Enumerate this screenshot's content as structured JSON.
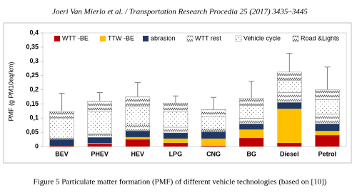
{
  "header": {
    "citation": "Joeri Van Mierlo et al. / Transportation Research Procedia 25 (2017) 3435–3445"
  },
  "chart_data": {
    "type": "stacked-bar",
    "y_label": "PMF (g PM10eq/km)",
    "categories": [
      "BEV",
      "PHEV",
      "HEV",
      "LPG",
      "CNG",
      "BG",
      "Diesel",
      "Petrol"
    ],
    "series": [
      {
        "name": "WTT -BE",
        "color": "#c00000",
        "pattern": "solid",
        "values": [
          0.005,
          0.01,
          0.025,
          0.013,
          0.003,
          0.03,
          0.013,
          0.04
        ]
      },
      {
        "name": "TTW -BE",
        "color": "#ffc000",
        "pattern": "solid",
        "values": [
          0,
          0.002,
          0.008,
          0.015,
          0.025,
          0.03,
          0.12,
          0.015
        ]
      },
      {
        "name": "abrasion",
        "color": "#1f3864",
        "pattern": "solid",
        "values": [
          0.02,
          0.02,
          0.022,
          0.02,
          0.024,
          0.02,
          0.022,
          0.025
        ]
      },
      {
        "name": "WTT rest",
        "color": "#595959",
        "pattern": "zigzag",
        "values": [
          0.005,
          0.013,
          0.025,
          0.02,
          0.01,
          0.02,
          0.035,
          0.035
        ]
      },
      {
        "name": "Vehicle cycle",
        "color": "#808080",
        "pattern": "dots",
        "values": [
          0.07,
          0.08,
          0.06,
          0.055,
          0.043,
          0.045,
          0.042,
          0.05
        ]
      },
      {
        "name": "Road &Lights",
        "color": "#404040",
        "pattern": "zigzag",
        "values": [
          0.025,
          0.035,
          0.035,
          0.03,
          0.025,
          0.025,
          0.03,
          0.035
        ]
      }
    ],
    "errors": [
      0.062,
      0.03,
      0.05,
      0.025,
      0.043,
      0.06,
      0.066,
      0.08
    ],
    "ylim": [
      0,
      0.4
    ],
    "yticks": [
      0,
      {
        "value": 0.05,
        "label": "0,05"
      },
      {
        "value": 0.1,
        "label": "0,1"
      },
      {
        "value": 0.15,
        "label": "0,15"
      },
      {
        "value": 0.2,
        "label": "0,2"
      },
      {
        "value": 0.25,
        "label": "0,25"
      },
      {
        "value": 0.3,
        "label": "0,3"
      },
      {
        "value": 0.35,
        "label": "0,35"
      },
      {
        "value": 0.4,
        "label": "0,4"
      }
    ],
    "grid": false
  },
  "caption": {
    "text": "Figure 5 Particulate matter formation (PMF) of different vehicle technologies (based on [10])"
  }
}
